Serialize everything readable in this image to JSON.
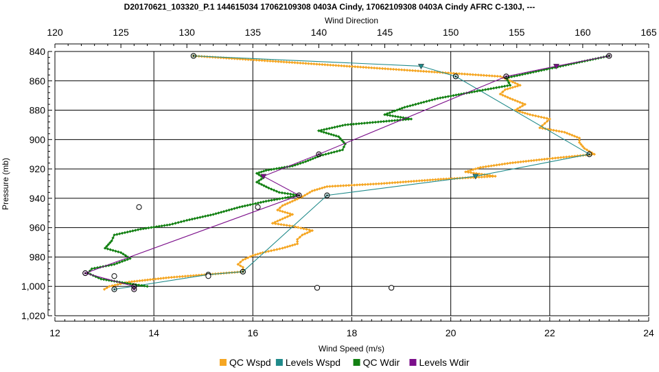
{
  "chart_data": {
    "type": "line",
    "title": "D20170621_103320_P.1 144615034 17062109308 0403A Cindy, 17062109308 0403A Cindy AFRC C-130J, ---",
    "xlabel_bottom": "Wind Speed (m/s)",
    "xlabel_top": "Wind Direction",
    "ylabel": "Pressure (mb)",
    "x_bottom_range": [
      12,
      24
    ],
    "x_top_range": [
      120,
      165
    ],
    "y_range": [
      840,
      1020
    ],
    "y_inverted": true,
    "grid": true,
    "x_bottom_ticks": [
      "12",
      "14",
      "16",
      "18",
      "20",
      "22",
      "24"
    ],
    "x_top_ticks": [
      "120",
      "125",
      "130",
      "135",
      "140",
      "145",
      "150",
      "155",
      "160",
      "165"
    ],
    "y_ticks": [
      "840",
      "860",
      "880",
      "900",
      "920",
      "940",
      "960",
      "980",
      "1,000",
      "1,020"
    ],
    "legend_position": "bottom",
    "series": [
      {
        "name": "QC Wspd",
        "axis": "bottom",
        "color": "#f5a623",
        "points": [
          [
            14.8,
            843
          ],
          [
            21.0,
            857
          ],
          [
            21.2,
            860
          ],
          [
            21.4,
            863
          ],
          [
            21.1,
            866
          ],
          [
            21.0,
            869
          ],
          [
            21.2,
            872
          ],
          [
            21.5,
            876
          ],
          [
            21.3,
            880
          ],
          [
            21.6,
            883
          ],
          [
            22.0,
            886
          ],
          [
            21.9,
            889
          ],
          [
            21.8,
            892
          ],
          [
            22.3,
            895
          ],
          [
            22.6,
            899
          ],
          [
            22.6,
            902
          ],
          [
            22.7,
            906
          ],
          [
            22.9,
            910
          ],
          [
            22.0,
            913
          ],
          [
            21.2,
            916
          ],
          [
            20.6,
            919
          ],
          [
            20.3,
            922
          ],
          [
            20.9,
            925
          ],
          [
            19.8,
            927
          ],
          [
            18.6,
            930
          ],
          [
            17.5,
            932
          ],
          [
            17.2,
            935
          ],
          [
            17.0,
            939
          ],
          [
            16.8,
            942
          ],
          [
            16.6,
            945
          ],
          [
            16.5,
            948
          ],
          [
            16.8,
            951
          ],
          [
            16.6,
            954
          ],
          [
            16.4,
            957
          ],
          [
            16.8,
            959
          ],
          [
            17.2,
            962
          ],
          [
            17.0,
            965
          ],
          [
            16.9,
            968
          ],
          [
            16.9,
            971
          ],
          [
            16.6,
            974
          ],
          [
            16.2,
            977
          ],
          [
            16.0,
            979
          ],
          [
            15.8,
            982
          ],
          [
            15.7,
            985
          ],
          [
            15.8,
            987
          ],
          [
            15.8,
            990
          ],
          [
            14.3,
            994
          ],
          [
            13.5,
            997
          ],
          [
            13.1,
            1000
          ],
          [
            13.0,
            1002
          ]
        ]
      },
      {
        "name": "Levels Wspd",
        "axis": "bottom",
        "color": "#1f8a8a",
        "points": [
          [
            14.8,
            843
          ],
          [
            19.4,
            850
          ],
          [
            20.1,
            857
          ],
          [
            22.8,
            910
          ],
          [
            20.5,
            925
          ],
          [
            17.5,
            938
          ],
          [
            15.8,
            990
          ],
          [
            15.1,
            992
          ],
          [
            13.2,
            1002
          ]
        ]
      },
      {
        "name": "QC Wdir",
        "axis": "top",
        "color": "#128012",
        "points": [
          [
            162,
            843
          ],
          [
            154.2,
            858
          ],
          [
            154.5,
            863
          ],
          [
            152,
            867
          ],
          [
            149,
            872
          ],
          [
            146.5,
            878
          ],
          [
            145,
            883
          ],
          [
            147,
            886
          ],
          [
            142,
            890
          ],
          [
            140,
            894
          ],
          [
            141.5,
            898
          ],
          [
            142,
            903
          ],
          [
            141.8,
            907
          ],
          [
            140.1,
            911
          ],
          [
            139,
            915
          ],
          [
            138,
            918
          ],
          [
            136,
            921
          ],
          [
            135.3,
            923
          ],
          [
            135.8,
            926
          ],
          [
            135.3,
            929
          ],
          [
            136.2,
            933
          ],
          [
            137,
            936
          ],
          [
            138.5,
            938
          ],
          [
            136,
            942
          ],
          [
            134,
            946
          ],
          [
            132,
            951
          ],
          [
            130,
            955
          ],
          [
            128.7,
            958
          ],
          [
            126.5,
            961
          ],
          [
            124.5,
            965
          ],
          [
            124.3,
            969
          ],
          [
            123.8,
            974
          ],
          [
            125,
            977
          ],
          [
            125.7,
            981
          ],
          [
            124.5,
            985
          ],
          [
            122.8,
            988
          ],
          [
            122.5,
            991
          ],
          [
            123.5,
            995
          ],
          [
            125.5,
            998
          ],
          [
            127,
            1000
          ]
        ]
      },
      {
        "name": "Levels Wdir",
        "axis": "top",
        "color": "#7b0e8a",
        "points": [
          [
            162,
            843
          ],
          [
            158,
            850
          ],
          [
            154.2,
            857
          ],
          [
            140,
            910
          ],
          [
            135.8,
            925
          ],
          [
            138.5,
            938
          ],
          [
            122.3,
            991
          ],
          [
            126,
            1000
          ],
          [
            126,
            1002
          ]
        ]
      }
    ],
    "extra_points": [
      {
        "axis": "bottom",
        "points": [
          [
            13.7,
            946
          ],
          [
            16.1,
            946
          ],
          [
            13.2,
            993
          ],
          [
            15.1,
            993
          ],
          [
            17.3,
            1001
          ],
          [
            18.8,
            1001
          ]
        ]
      }
    ]
  }
}
